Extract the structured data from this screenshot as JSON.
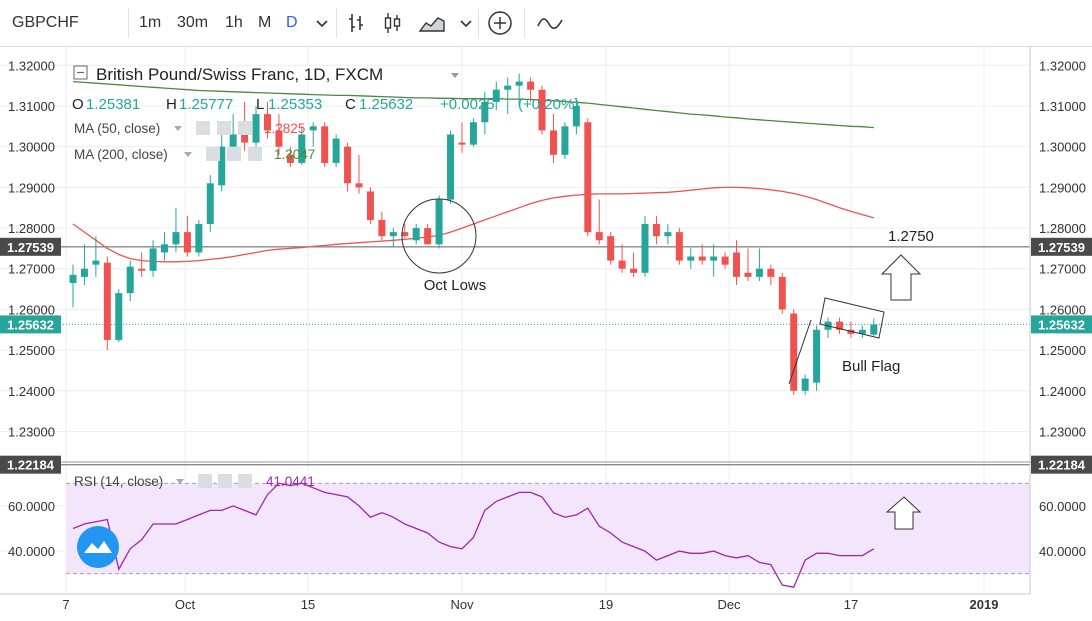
{
  "toolbar": {
    "symbol": "GBPCHF",
    "intervals": [
      "1m",
      "30m",
      "1h",
      "M",
      "D"
    ],
    "active_interval": "D",
    "icons": [
      "chevron-down-icon",
      "bar-style-icon",
      "candles-style-icon",
      "area-style-icon",
      "chevron-down-icon",
      "add-compare-icon",
      "indicators-icon"
    ]
  },
  "legend": {
    "title": "British Pound/Swiss Franc, 1D, FXCM",
    "ohlc": {
      "O": "1.25381",
      "H": "1.25777",
      "L": "1.25353",
      "C": "1.25632",
      "change": "+0.0025",
      "change_pct": "(+0.20%)"
    },
    "ma50": {
      "label": "MA (50, close)",
      "value": "1.2825"
    },
    "ma200": {
      "label": "MA (200, close)",
      "value": "1.3047"
    }
  },
  "rsi": {
    "label": "RSI (14, close)",
    "value": "41.0441"
  },
  "colors": {
    "up": "#26a69a",
    "down": "#ef5350",
    "ma50": "#ef5350",
    "ma200": "#4a8a3a",
    "rsi": "#9c27b0",
    "rsi_band": "#f3e5fb",
    "price_line": "#26a69a"
  },
  "chart_data": [
    {
      "type": "candlestick",
      "title": "British Pound/Swiss Franc, 1D, FXCM",
      "x_ticks": [
        "7",
        "Oct",
        "15",
        "Nov",
        "19",
        "Dec",
        "17",
        "2019"
      ],
      "y_ticks": [
        "1.32000",
        "1.31000",
        "1.30000",
        "1.29000",
        "1.28000",
        "1.27000",
        "1.26000",
        "1.25000",
        "1.24000",
        "1.23000"
      ],
      "ylim": [
        1.2225,
        1.3245
      ],
      "markers": [
        {
          "price": 1.27539,
          "label": "1.27539"
        },
        {
          "price": 1.25632,
          "label": "1.25632"
        },
        {
          "price": 1.22184,
          "label": "1.22184"
        }
      ],
      "annotations": [
        "1.2750",
        "Oct Lows",
        "Bull Flag"
      ],
      "candles": [
        {
          "o": 1.2665,
          "h": 1.271,
          "l": 1.2605,
          "c": 1.2685
        },
        {
          "o": 1.268,
          "h": 1.276,
          "l": 1.266,
          "c": 1.27
        },
        {
          "o": 1.271,
          "h": 1.278,
          "l": 1.268,
          "c": 1.272
        },
        {
          "o": 1.2715,
          "h": 1.273,
          "l": 1.25,
          "c": 1.2525
        },
        {
          "o": 1.2525,
          "h": 1.265,
          "l": 1.252,
          "c": 1.264
        },
        {
          "o": 1.264,
          "h": 1.272,
          "l": 1.262,
          "c": 1.2705
        },
        {
          "o": 1.27,
          "h": 1.274,
          "l": 1.268,
          "c": 1.2695
        },
        {
          "o": 1.2695,
          "h": 1.277,
          "l": 1.268,
          "c": 1.275
        },
        {
          "o": 1.274,
          "h": 1.279,
          "l": 1.272,
          "c": 1.276
        },
        {
          "o": 1.276,
          "h": 1.285,
          "l": 1.274,
          "c": 1.279
        },
        {
          "o": 1.279,
          "h": 1.283,
          "l": 1.273,
          "c": 1.274
        },
        {
          "o": 1.274,
          "h": 1.282,
          "l": 1.273,
          "c": 1.281
        },
        {
          "o": 1.281,
          "h": 1.293,
          "l": 1.279,
          "c": 1.291
        },
        {
          "o": 1.2905,
          "h": 1.305,
          "l": 1.289,
          "c": 1.3
        },
        {
          "o": 1.3,
          "h": 1.308,
          "l": 1.298,
          "c": 1.303
        },
        {
          "o": 1.303,
          "h": 1.311,
          "l": 1.299,
          "c": 1.301
        },
        {
          "o": 1.301,
          "h": 1.31,
          "l": 1.3,
          "c": 1.308
        },
        {
          "o": 1.308,
          "h": 1.311,
          "l": 1.302,
          "c": 1.304
        },
        {
          "o": 1.304,
          "h": 1.308,
          "l": 1.298,
          "c": 1.3
        },
        {
          "o": 1.298,
          "h": 1.3,
          "l": 1.295,
          "c": 1.296
        },
        {
          "o": 1.296,
          "h": 1.305,
          "l": 1.2955,
          "c": 1.303
        },
        {
          "o": 1.304,
          "h": 1.306,
          "l": 1.3,
          "c": 1.305
        },
        {
          "o": 1.305,
          "h": 1.306,
          "l": 1.295,
          "c": 1.296
        },
        {
          "o": 1.296,
          "h": 1.303,
          "l": 1.295,
          "c": 1.302
        },
        {
          "o": 1.3,
          "h": 1.301,
          "l": 1.289,
          "c": 1.291
        },
        {
          "o": 1.291,
          "h": 1.298,
          "l": 1.2885,
          "c": 1.29
        },
        {
          "o": 1.289,
          "h": 1.29,
          "l": 1.281,
          "c": 1.282
        },
        {
          "o": 1.282,
          "h": 1.284,
          "l": 1.277,
          "c": 1.278
        },
        {
          "o": 1.278,
          "h": 1.28,
          "l": 1.2755,
          "c": 1.279
        },
        {
          "o": 1.279,
          "h": 1.281,
          "l": 1.2775,
          "c": 1.278
        },
        {
          "o": 1.277,
          "h": 1.281,
          "l": 1.276,
          "c": 1.28
        },
        {
          "o": 1.28,
          "h": 1.281,
          "l": 1.276,
          "c": 1.276
        },
        {
          "o": 1.276,
          "h": 1.288,
          "l": 1.275,
          "c": 1.287
        },
        {
          "o": 1.287,
          "h": 1.304,
          "l": 1.286,
          "c": 1.303
        },
        {
          "o": 1.301,
          "h": 1.306,
          "l": 1.2985,
          "c": 1.3005
        },
        {
          "o": 1.3005,
          "h": 1.307,
          "l": 1.3,
          "c": 1.306
        },
        {
          "o": 1.306,
          "h": 1.3135,
          "l": 1.303,
          "c": 1.311
        },
        {
          "o": 1.311,
          "h": 1.316,
          "l": 1.309,
          "c": 1.314
        },
        {
          "o": 1.314,
          "h": 1.317,
          "l": 1.308,
          "c": 1.315
        },
        {
          "o": 1.315,
          "h": 1.318,
          "l": 1.31,
          "c": 1.316
        },
        {
          "o": 1.316,
          "h": 1.317,
          "l": 1.311,
          "c": 1.314
        },
        {
          "o": 1.314,
          "h": 1.315,
          "l": 1.303,
          "c": 1.304
        },
        {
          "o": 1.304,
          "h": 1.308,
          "l": 1.296,
          "c": 1.298
        },
        {
          "o": 1.298,
          "h": 1.306,
          "l": 1.297,
          "c": 1.305
        },
        {
          "o": 1.305,
          "h": 1.312,
          "l": 1.303,
          "c": 1.31
        },
        {
          "o": 1.306,
          "h": 1.307,
          "l": 1.278,
          "c": 1.279
        },
        {
          "o": 1.279,
          "h": 1.287,
          "l": 1.276,
          "c": 1.277
        },
        {
          "o": 1.278,
          "h": 1.279,
          "l": 1.271,
          "c": 1.272
        },
        {
          "o": 1.272,
          "h": 1.276,
          "l": 1.269,
          "c": 1.27
        },
        {
          "o": 1.27,
          "h": 1.274,
          "l": 1.268,
          "c": 1.269
        },
        {
          "o": 1.269,
          "h": 1.283,
          "l": 1.268,
          "c": 1.281
        },
        {
          "o": 1.281,
          "h": 1.283,
          "l": 1.276,
          "c": 1.278
        },
        {
          "o": 1.278,
          "h": 1.281,
          "l": 1.276,
          "c": 1.279
        },
        {
          "o": 1.279,
          "h": 1.28,
          "l": 1.271,
          "c": 1.272
        },
        {
          "o": 1.272,
          "h": 1.275,
          "l": 1.27,
          "c": 1.273
        },
        {
          "o": 1.273,
          "h": 1.276,
          "l": 1.271,
          "c": 1.272
        },
        {
          "o": 1.272,
          "h": 1.276,
          "l": 1.268,
          "c": 1.273
        },
        {
          "o": 1.273,
          "h": 1.274,
          "l": 1.27,
          "c": 1.271
        },
        {
          "o": 1.274,
          "h": 1.277,
          "l": 1.266,
          "c": 1.268
        },
        {
          "o": 1.269,
          "h": 1.275,
          "l": 1.267,
          "c": 1.268
        },
        {
          "o": 1.268,
          "h": 1.275,
          "l": 1.267,
          "c": 1.27
        },
        {
          "o": 1.27,
          "h": 1.271,
          "l": 1.266,
          "c": 1.268
        },
        {
          "o": 1.268,
          "h": 1.269,
          "l": 1.259,
          "c": 1.26
        },
        {
          "o": 1.259,
          "h": 1.26,
          "l": 1.239,
          "c": 1.24
        },
        {
          "o": 1.24,
          "h": 1.244,
          "l": 1.239,
          "c": 1.243
        },
        {
          "o": 1.242,
          "h": 1.256,
          "l": 1.24,
          "c": 1.255
        },
        {
          "o": 1.255,
          "h": 1.258,
          "l": 1.253,
          "c": 1.257
        },
        {
          "o": 1.257,
          "h": 1.258,
          "l": 1.254,
          "c": 1.255
        },
        {
          "o": 1.255,
          "h": 1.257,
          "l": 1.253,
          "c": 1.254
        },
        {
          "o": 1.254,
          "h": 1.256,
          "l": 1.253,
          "c": 1.255
        },
        {
          "o": 1.2538,
          "h": 1.2578,
          "l": 1.2535,
          "c": 1.2563
        }
      ],
      "ma50": [
        1.281,
        1.279,
        1.277,
        1.275,
        1.2735,
        1.2725,
        1.272,
        1.2718,
        1.2717,
        1.2717,
        1.2718,
        1.272,
        1.2723,
        1.2726,
        1.273,
        1.2735,
        1.274,
        1.2745,
        1.2748,
        1.275,
        1.2752,
        1.2755,
        1.2757,
        1.276,
        1.2762,
        1.2764,
        1.2766,
        1.2768,
        1.277,
        1.2772,
        1.2775,
        1.2778,
        1.2782,
        1.279,
        1.28,
        1.281,
        1.282,
        1.283,
        1.284,
        1.285,
        1.286,
        1.2868,
        1.2874,
        1.2878,
        1.2881,
        1.2883,
        1.2884,
        1.2884,
        1.2884,
        1.2885,
        1.2886,
        1.2887,
        1.2888,
        1.289,
        1.2893,
        1.2896,
        1.2899,
        1.29,
        1.29,
        1.2899,
        1.2897,
        1.2894,
        1.289,
        1.2885,
        1.2878,
        1.287,
        1.286,
        1.285,
        1.2841,
        1.2833,
        1.2825
      ],
      "ma200": [
        1.316,
        1.3158,
        1.3156,
        1.3154,
        1.3152,
        1.315,
        1.3148,
        1.3146,
        1.3144,
        1.3142,
        1.314,
        1.3138,
        1.3137,
        1.3136,
        1.3135,
        1.3134,
        1.3133,
        1.3132,
        1.3131,
        1.313,
        1.3129,
        1.3128,
        1.3127,
        1.3126,
        1.3126,
        1.3125,
        1.3124,
        1.3123,
        1.3122,
        1.3121,
        1.312,
        1.312,
        1.3119,
        1.3119,
        1.3118,
        1.3118,
        1.3118,
        1.3118,
        1.3117,
        1.3117,
        1.3116,
        1.3115,
        1.3113,
        1.3111,
        1.3109,
        1.3107,
        1.3104,
        1.3101,
        1.3098,
        1.3095,
        1.3092,
        1.3089,
        1.3086,
        1.3083,
        1.308,
        1.3078,
        1.3076,
        1.3073,
        1.3071,
        1.3068,
        1.3066,
        1.3064,
        1.3062,
        1.306,
        1.3058,
        1.3056,
        1.3054,
        1.3052,
        1.305,
        1.3049,
        1.3047
      ]
    },
    {
      "type": "line",
      "title": "RSI (14, close)",
      "y_ticks": [
        "60.0000",
        "40.0000"
      ],
      "ylim": [
        21,
        79
      ],
      "band": [
        30,
        70
      ],
      "values": [
        50,
        52,
        53,
        54,
        32,
        41,
        45,
        52,
        52,
        52,
        54,
        56,
        58,
        58,
        60,
        58,
        56,
        65,
        70,
        69,
        70,
        68,
        66,
        65,
        64,
        60,
        55,
        57,
        55,
        52,
        50,
        48,
        44,
        42,
        41,
        46,
        58,
        62,
        64,
        66,
        66,
        64,
        57,
        55,
        56,
        59,
        51,
        48,
        44,
        42,
        40,
        36,
        38,
        40,
        39,
        39,
        40,
        38,
        37,
        38,
        35,
        34,
        25,
        24,
        36,
        39,
        39,
        38,
        38,
        38,
        41
      ]
    }
  ]
}
